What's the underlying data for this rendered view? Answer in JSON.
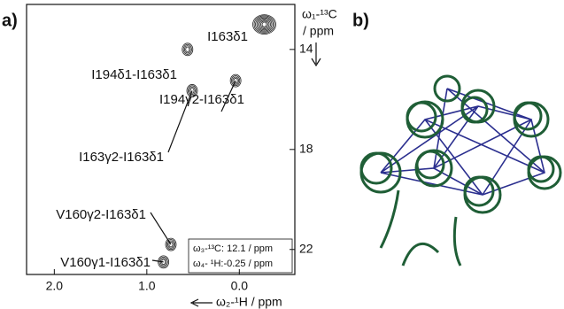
{
  "chart_data": {
    "type": "scatter",
    "panel_label": "a)",
    "xlabel": "ω₂-¹H / ppm",
    "ylabel": [
      "ω₁-¹³C",
      "/ ppm"
    ],
    "x": [
      -0.27,
      0.56,
      0.04,
      0.51,
      0.74,
      0.82
    ],
    "values": [
      13.0,
      14.0,
      15.25,
      15.65,
      21.8,
      22.5
    ],
    "labels": [
      "I163δ1",
      "I194δ1-I163δ1",
      "I194γ2-I163δ1",
      "I163γ2-I163δ1",
      "V160γ2-I163δ1",
      "V160γ1-I163δ1"
    ],
    "xlim": [
      2.3,
      -0.6
    ],
    "ylim": [
      23,
      12.2
    ],
    "xticks": [
      {
        "value": 2,
        "label": "2.0"
      },
      {
        "value": 1,
        "label": "1.0"
      },
      {
        "value": 0,
        "label": "0.0"
      }
    ],
    "yticks": [
      14,
      18,
      22
    ],
    "color": "#222222",
    "annotation": [
      "ω₃-¹³C: 12.1 / ppm",
      "ω₄- ¹H:-0.25 / ppm"
    ]
  },
  "panel_b": {
    "label": "b)"
  }
}
